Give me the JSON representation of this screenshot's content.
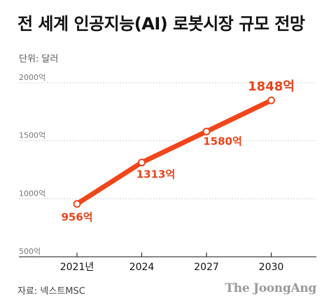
{
  "header": {
    "title": "전 세계 인공지능(AI) 로봇시장 규모 전망",
    "unit": "단위: 달러"
  },
  "footer": {
    "source": "자료: 넥스트MSC",
    "brand": "The JoongAng"
  },
  "colors": {
    "line": "#f0461b",
    "label": "#e8441b",
    "grid": "#cfcfcf",
    "axis": "#111111"
  },
  "chart_data": {
    "type": "line",
    "title": "전 세계 인공지능(AI) 로봇시장 규모 전망",
    "xlabel": "",
    "ylabel": "",
    "categories": [
      "2021년",
      "2024",
      "2027",
      "2030"
    ],
    "x": [
      2021,
      2024,
      2027,
      2030
    ],
    "series": [
      {
        "values": [
          956,
          1313,
          1580,
          1848
        ],
        "data_labels": [
          "956억",
          "1313억",
          "1580억",
          "1848억"
        ]
      }
    ],
    "y_ticks": [
      500,
      1000,
      1500,
      2000
    ],
    "y_tick_labels": [
      "500억",
      "1000억",
      "1500억",
      "2000억"
    ],
    "ylim": [
      500,
      2000
    ],
    "grid": true,
    "legend": "none"
  }
}
